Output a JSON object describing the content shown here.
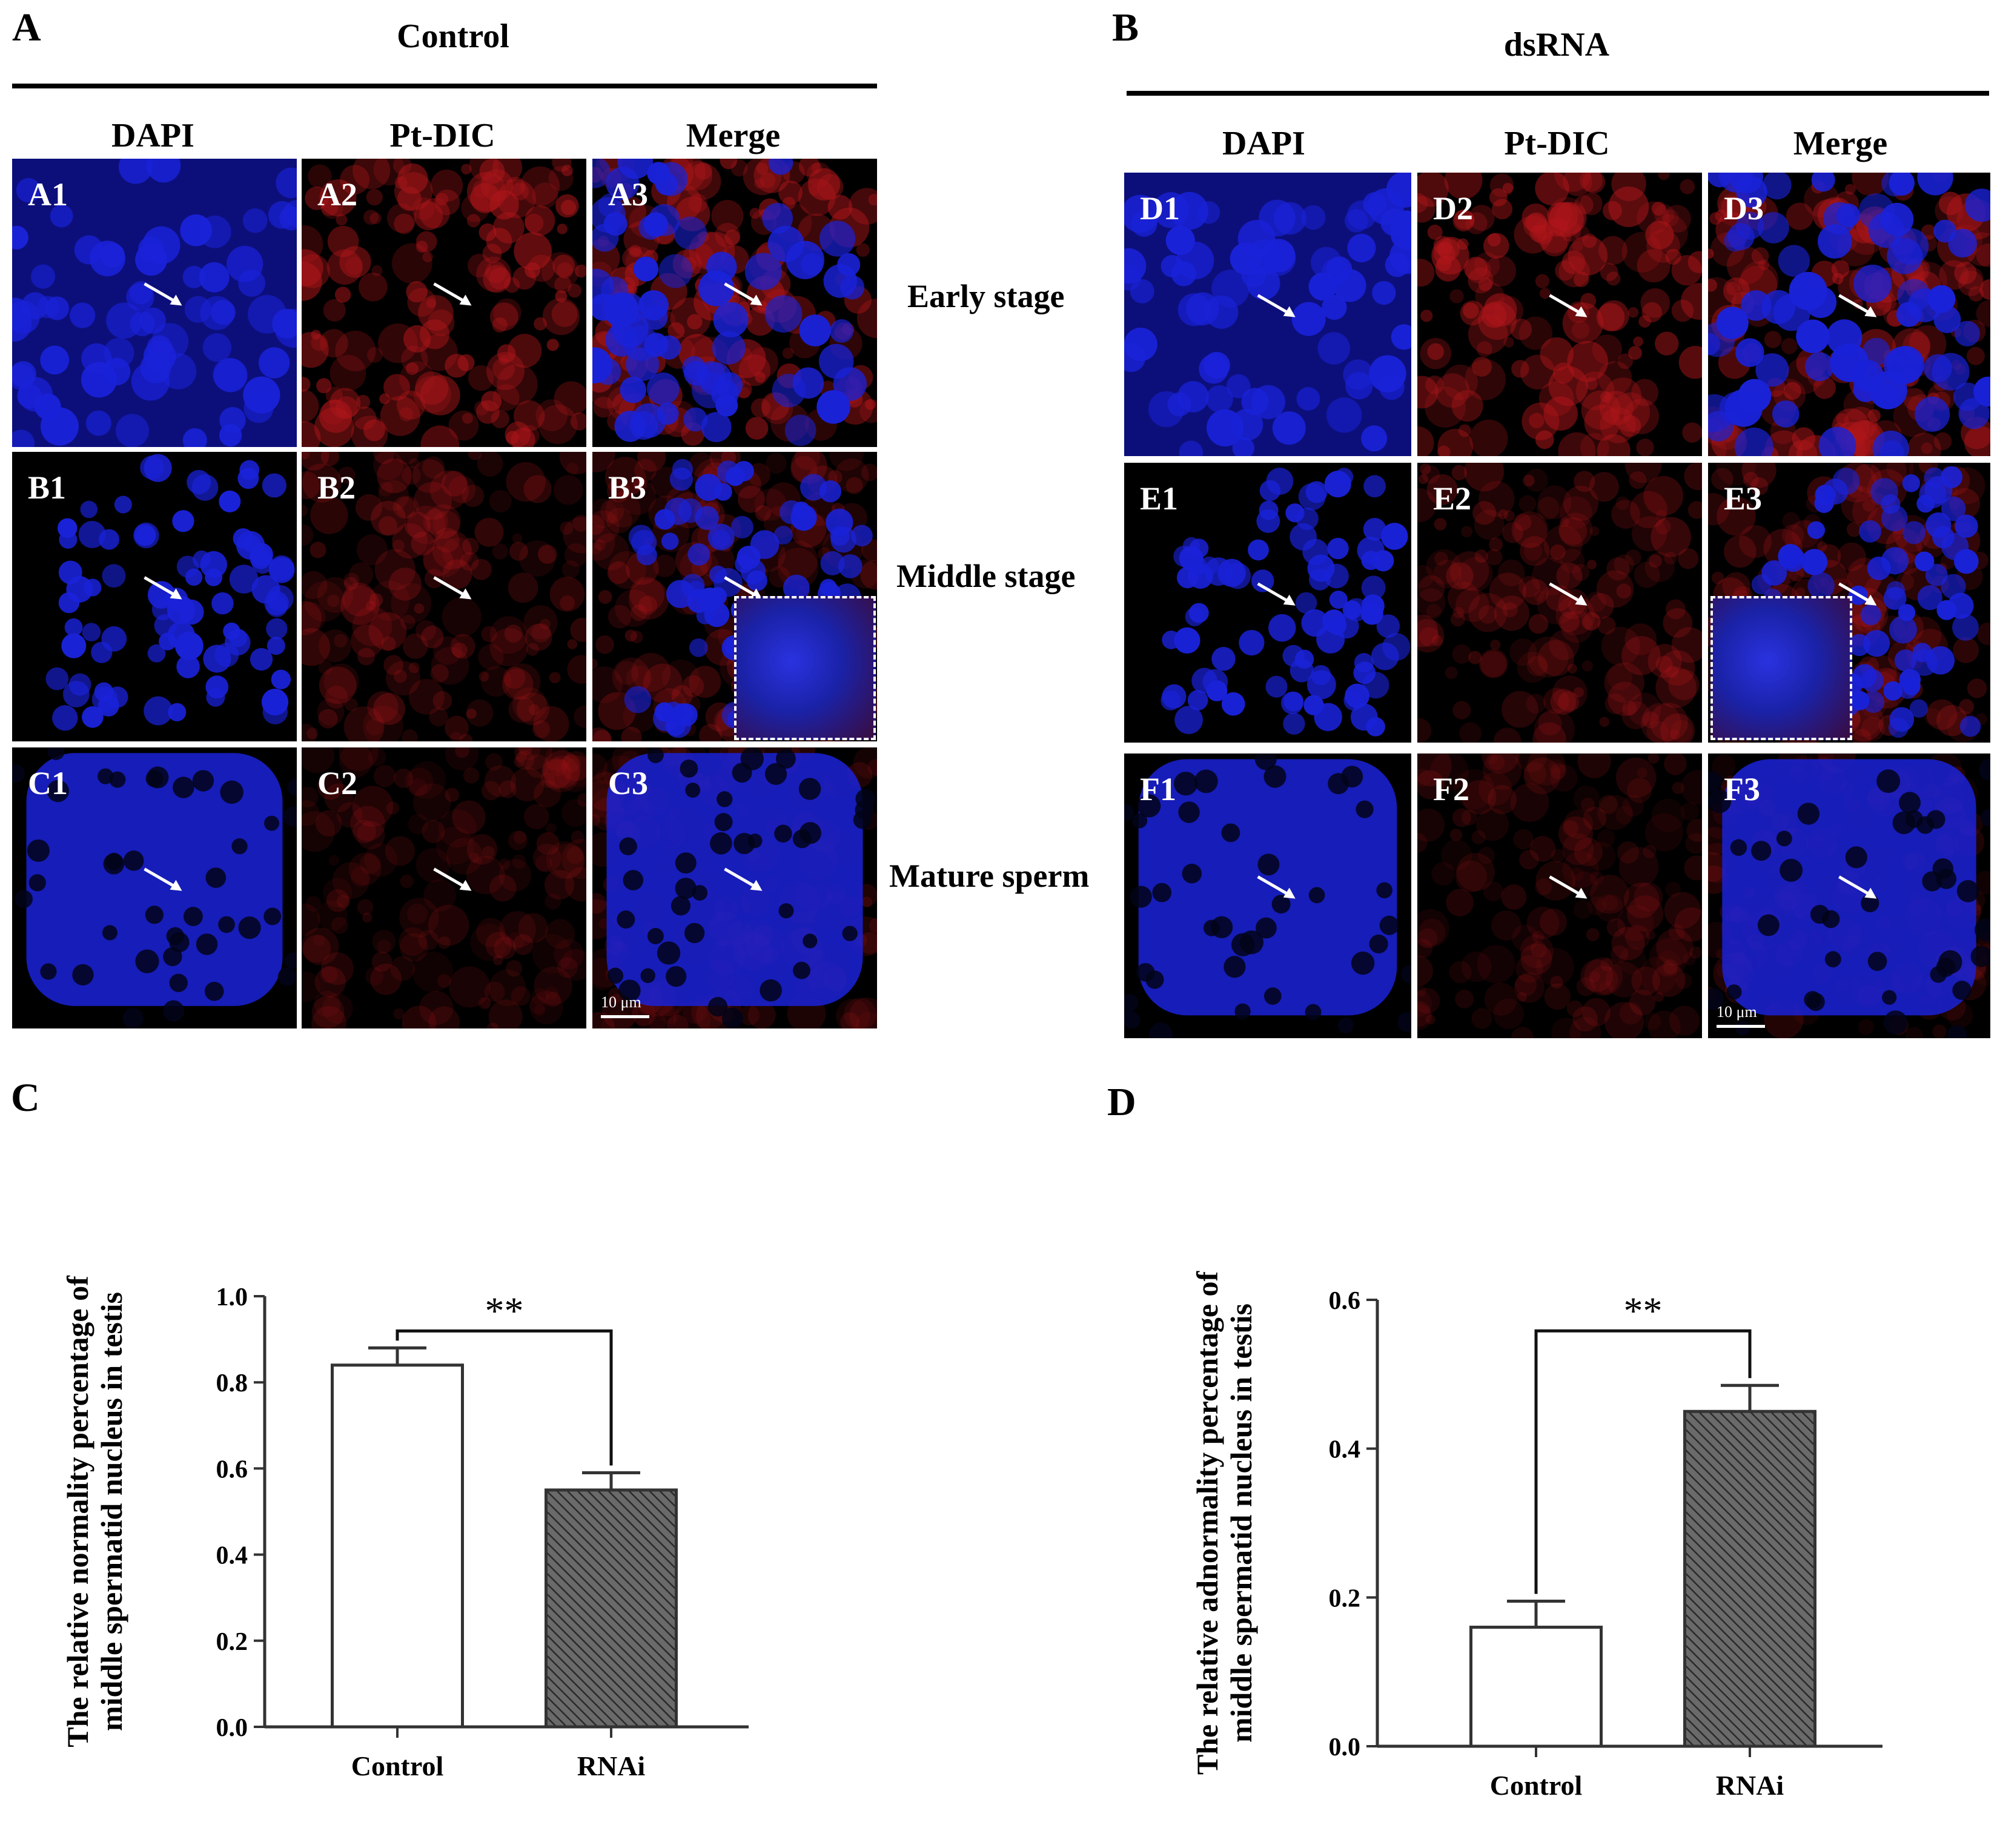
{
  "panels": {
    "A": {
      "letter": "A",
      "title": "Control",
      "columns": [
        "DAPI",
        "Pt-DIC",
        "Merge"
      ],
      "tiles": [
        "A1",
        "A2",
        "A3",
        "B1",
        "B2",
        "B3",
        "C1",
        "C2",
        "C3"
      ],
      "scale_bar": "10 μm"
    },
    "B": {
      "letter": "B",
      "title": "dsRNA",
      "columns": [
        "DAPI",
        "Pt-DIC",
        "Merge"
      ],
      "tiles": [
        "D1",
        "D2",
        "D3",
        "E1",
        "E2",
        "E3",
        "F1",
        "F2",
        "F3"
      ],
      "scale_bar": "10 μm"
    },
    "C": {
      "letter": "C"
    },
    "D": {
      "letter": "D"
    }
  },
  "rows": [
    "Early stage",
    "Middle stage",
    "Mature sperm"
  ],
  "colors": {
    "dapi": "#1a22d8",
    "pt_dic": "#b0161a",
    "bar_edge": "#333333",
    "hatch_fill": "#555555"
  },
  "chart_data": [
    {
      "type": "bar",
      "categories": [
        "Control",
        "RNAi"
      ],
      "values": [
        0.84,
        0.55
      ],
      "errors": [
        0.04,
        0.04
      ],
      "fill": [
        "open",
        "hatched"
      ],
      "ylabel": "The relative normality percentage of middle spermatid nucleus in testis",
      "ylim": [
        0.0,
        1.0
      ],
      "yticks": [
        "0.0",
        "0.2",
        "0.4",
        "0.6",
        "0.8",
        "1.0"
      ],
      "significance": "**"
    },
    {
      "type": "bar",
      "categories": [
        "Control",
        "RNAi"
      ],
      "values": [
        0.16,
        0.45
      ],
      "errors": [
        0.035,
        0.035
      ],
      "fill": [
        "open",
        "hatched"
      ],
      "ylabel": "The relative adnormality percentage of middle spermatid nucleus in testis",
      "ylim": [
        0.0,
        0.6
      ],
      "yticks": [
        "0.0",
        "0.2",
        "0.4",
        "0.6"
      ],
      "significance": "**"
    }
  ]
}
